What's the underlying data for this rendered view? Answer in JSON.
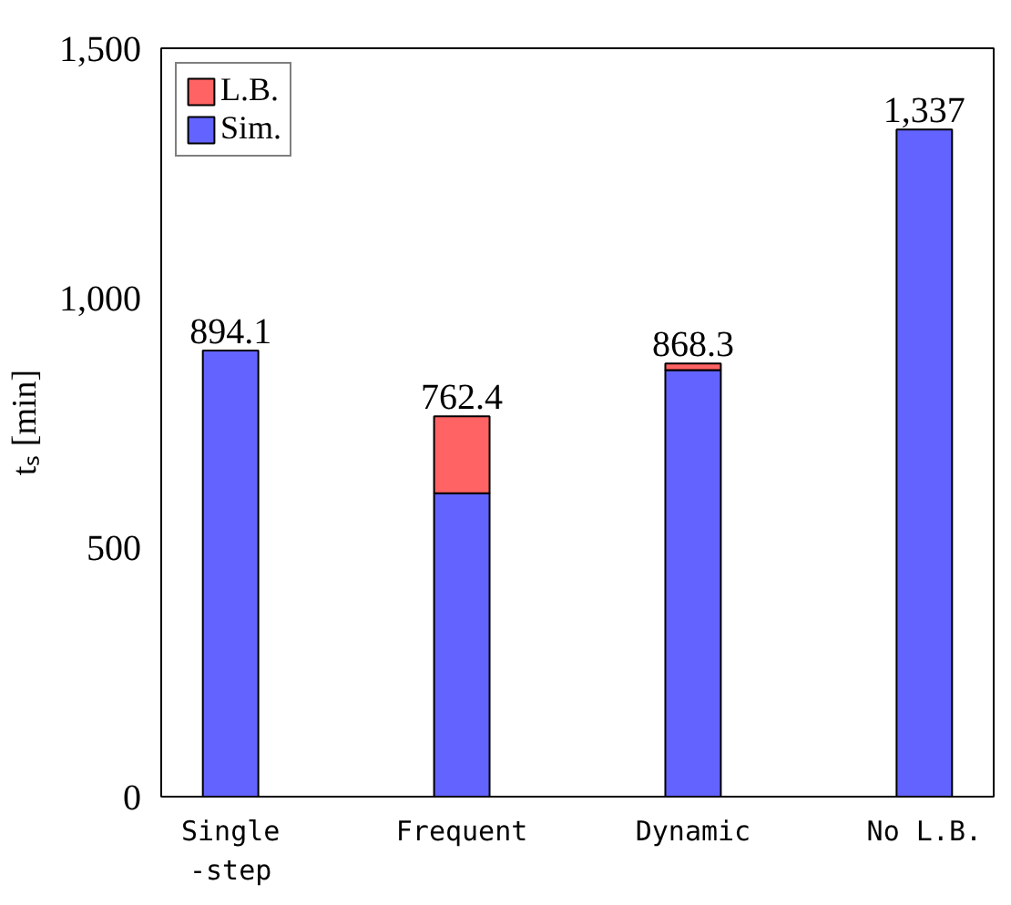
{
  "chart_data": {
    "type": "bar",
    "stacked": true,
    "ylabel": "tₛ [min]",
    "categories": [
      "Single\n-step",
      "Frequent",
      "Dynamic",
      "No L.B."
    ],
    "series": [
      {
        "name": "Sim.",
        "color": "#6363ff",
        "values": [
          894.1,
          608,
          855,
          1337
        ]
      },
      {
        "name": "L.B.",
        "color": "#ff6363",
        "values": [
          null,
          154.4,
          13.3,
          null
        ]
      }
    ],
    "totals": [
      "894.1",
      "762.4",
      "868.3",
      "1,337"
    ],
    "ylim": [
      0,
      1500
    ],
    "yticks": [
      0,
      500,
      {
        "value": 1000,
        "label": "1,000"
      },
      {
        "value": 1500,
        "label": "1,500"
      }
    ],
    "grid": false,
    "legend": "top left"
  }
}
